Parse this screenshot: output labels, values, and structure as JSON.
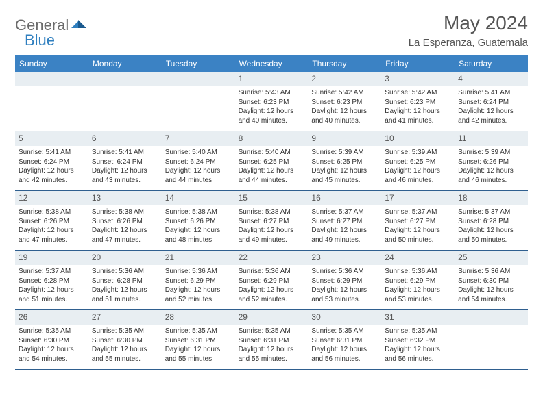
{
  "logo": {
    "text1": "General",
    "text2": "Blue"
  },
  "title": "May 2024",
  "location": "La Esperanza, Guatemala",
  "header_bg": "#3b82c4",
  "daynum_bg": "#e8eef2",
  "row_border": "#2f5f8f",
  "weekdays": [
    "Sunday",
    "Monday",
    "Tuesday",
    "Wednesday",
    "Thursday",
    "Friday",
    "Saturday"
  ],
  "labels": {
    "sunrise": "Sunrise:",
    "sunset": "Sunset:",
    "daylight": "Daylight:"
  },
  "weeks": [
    [
      {
        "n": "",
        "empty": true
      },
      {
        "n": "",
        "empty": true
      },
      {
        "n": "",
        "empty": true
      },
      {
        "n": "1",
        "sunrise": "5:43 AM",
        "sunset": "6:23 PM",
        "daylight": "12 hours and 40 minutes."
      },
      {
        "n": "2",
        "sunrise": "5:42 AM",
        "sunset": "6:23 PM",
        "daylight": "12 hours and 40 minutes."
      },
      {
        "n": "3",
        "sunrise": "5:42 AM",
        "sunset": "6:23 PM",
        "daylight": "12 hours and 41 minutes."
      },
      {
        "n": "4",
        "sunrise": "5:41 AM",
        "sunset": "6:24 PM",
        "daylight": "12 hours and 42 minutes."
      }
    ],
    [
      {
        "n": "5",
        "sunrise": "5:41 AM",
        "sunset": "6:24 PM",
        "daylight": "12 hours and 42 minutes."
      },
      {
        "n": "6",
        "sunrise": "5:41 AM",
        "sunset": "6:24 PM",
        "daylight": "12 hours and 43 minutes."
      },
      {
        "n": "7",
        "sunrise": "5:40 AM",
        "sunset": "6:24 PM",
        "daylight": "12 hours and 44 minutes."
      },
      {
        "n": "8",
        "sunrise": "5:40 AM",
        "sunset": "6:25 PM",
        "daylight": "12 hours and 44 minutes."
      },
      {
        "n": "9",
        "sunrise": "5:39 AM",
        "sunset": "6:25 PM",
        "daylight": "12 hours and 45 minutes."
      },
      {
        "n": "10",
        "sunrise": "5:39 AM",
        "sunset": "6:25 PM",
        "daylight": "12 hours and 46 minutes."
      },
      {
        "n": "11",
        "sunrise": "5:39 AM",
        "sunset": "6:26 PM",
        "daylight": "12 hours and 46 minutes."
      }
    ],
    [
      {
        "n": "12",
        "sunrise": "5:38 AM",
        "sunset": "6:26 PM",
        "daylight": "12 hours and 47 minutes."
      },
      {
        "n": "13",
        "sunrise": "5:38 AM",
        "sunset": "6:26 PM",
        "daylight": "12 hours and 47 minutes."
      },
      {
        "n": "14",
        "sunrise": "5:38 AM",
        "sunset": "6:26 PM",
        "daylight": "12 hours and 48 minutes."
      },
      {
        "n": "15",
        "sunrise": "5:38 AM",
        "sunset": "6:27 PM",
        "daylight": "12 hours and 49 minutes."
      },
      {
        "n": "16",
        "sunrise": "5:37 AM",
        "sunset": "6:27 PM",
        "daylight": "12 hours and 49 minutes."
      },
      {
        "n": "17",
        "sunrise": "5:37 AM",
        "sunset": "6:27 PM",
        "daylight": "12 hours and 50 minutes."
      },
      {
        "n": "18",
        "sunrise": "5:37 AM",
        "sunset": "6:28 PM",
        "daylight": "12 hours and 50 minutes."
      }
    ],
    [
      {
        "n": "19",
        "sunrise": "5:37 AM",
        "sunset": "6:28 PM",
        "daylight": "12 hours and 51 minutes."
      },
      {
        "n": "20",
        "sunrise": "5:36 AM",
        "sunset": "6:28 PM",
        "daylight": "12 hours and 51 minutes."
      },
      {
        "n": "21",
        "sunrise": "5:36 AM",
        "sunset": "6:29 PM",
        "daylight": "12 hours and 52 minutes."
      },
      {
        "n": "22",
        "sunrise": "5:36 AM",
        "sunset": "6:29 PM",
        "daylight": "12 hours and 52 minutes."
      },
      {
        "n": "23",
        "sunrise": "5:36 AM",
        "sunset": "6:29 PM",
        "daylight": "12 hours and 53 minutes."
      },
      {
        "n": "24",
        "sunrise": "5:36 AM",
        "sunset": "6:29 PM",
        "daylight": "12 hours and 53 minutes."
      },
      {
        "n": "25",
        "sunrise": "5:36 AM",
        "sunset": "6:30 PM",
        "daylight": "12 hours and 54 minutes."
      }
    ],
    [
      {
        "n": "26",
        "sunrise": "5:35 AM",
        "sunset": "6:30 PM",
        "daylight": "12 hours and 54 minutes."
      },
      {
        "n": "27",
        "sunrise": "5:35 AM",
        "sunset": "6:30 PM",
        "daylight": "12 hours and 55 minutes."
      },
      {
        "n": "28",
        "sunrise": "5:35 AM",
        "sunset": "6:31 PM",
        "daylight": "12 hours and 55 minutes."
      },
      {
        "n": "29",
        "sunrise": "5:35 AM",
        "sunset": "6:31 PM",
        "daylight": "12 hours and 55 minutes."
      },
      {
        "n": "30",
        "sunrise": "5:35 AM",
        "sunset": "6:31 PM",
        "daylight": "12 hours and 56 minutes."
      },
      {
        "n": "31",
        "sunrise": "5:35 AM",
        "sunset": "6:32 PM",
        "daylight": "12 hours and 56 minutes."
      },
      {
        "n": "",
        "empty": true
      }
    ]
  ]
}
